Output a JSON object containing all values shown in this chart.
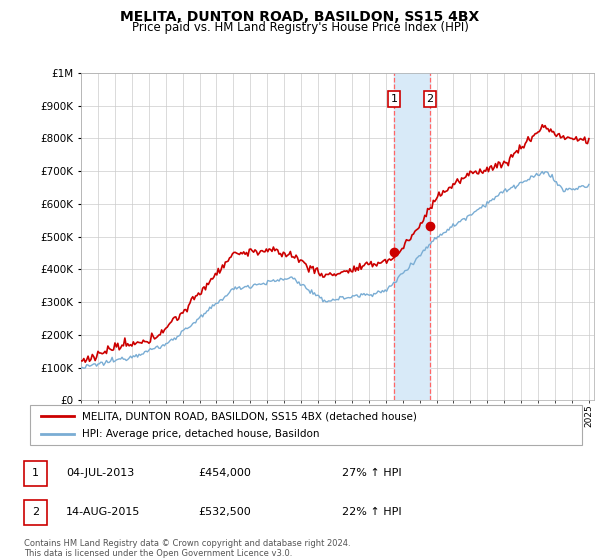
{
  "title": "MELITA, DUNTON ROAD, BASILDON, SS15 4BX",
  "subtitle": "Price paid vs. HM Land Registry's House Price Index (HPI)",
  "ytick_values": [
    0,
    100000,
    200000,
    300000,
    400000,
    500000,
    600000,
    700000,
    800000,
    900000,
    1000000
  ],
  "ylim": [
    0,
    1000000
  ],
  "transaction1": {
    "date_num": 2013.5,
    "price": 454000
  },
  "transaction2": {
    "date_num": 2015.62,
    "price": 532500
  },
  "hpi_color": "#7aadd4",
  "price_color": "#cc0000",
  "vline_color": "#ff6666",
  "shade_color": "#d8eaf8",
  "legend_label_price": "MELITA, DUNTON ROAD, BASILDON, SS15 4BX (detached house)",
  "legend_label_hpi": "HPI: Average price, detached house, Basildon",
  "footer": "Contains HM Land Registry data © Crown copyright and database right 2024.\nThis data is licensed under the Open Government Licence v3.0.",
  "note1_label": "1",
  "note1_date": "04-JUL-2013",
  "note1_price": "£454,000",
  "note1_hpi": "27% ↑ HPI",
  "note2_label": "2",
  "note2_date": "14-AUG-2015",
  "note2_price": "£532,500",
  "note2_hpi": "22% ↑ HPI",
  "box_color": "#cc0000"
}
